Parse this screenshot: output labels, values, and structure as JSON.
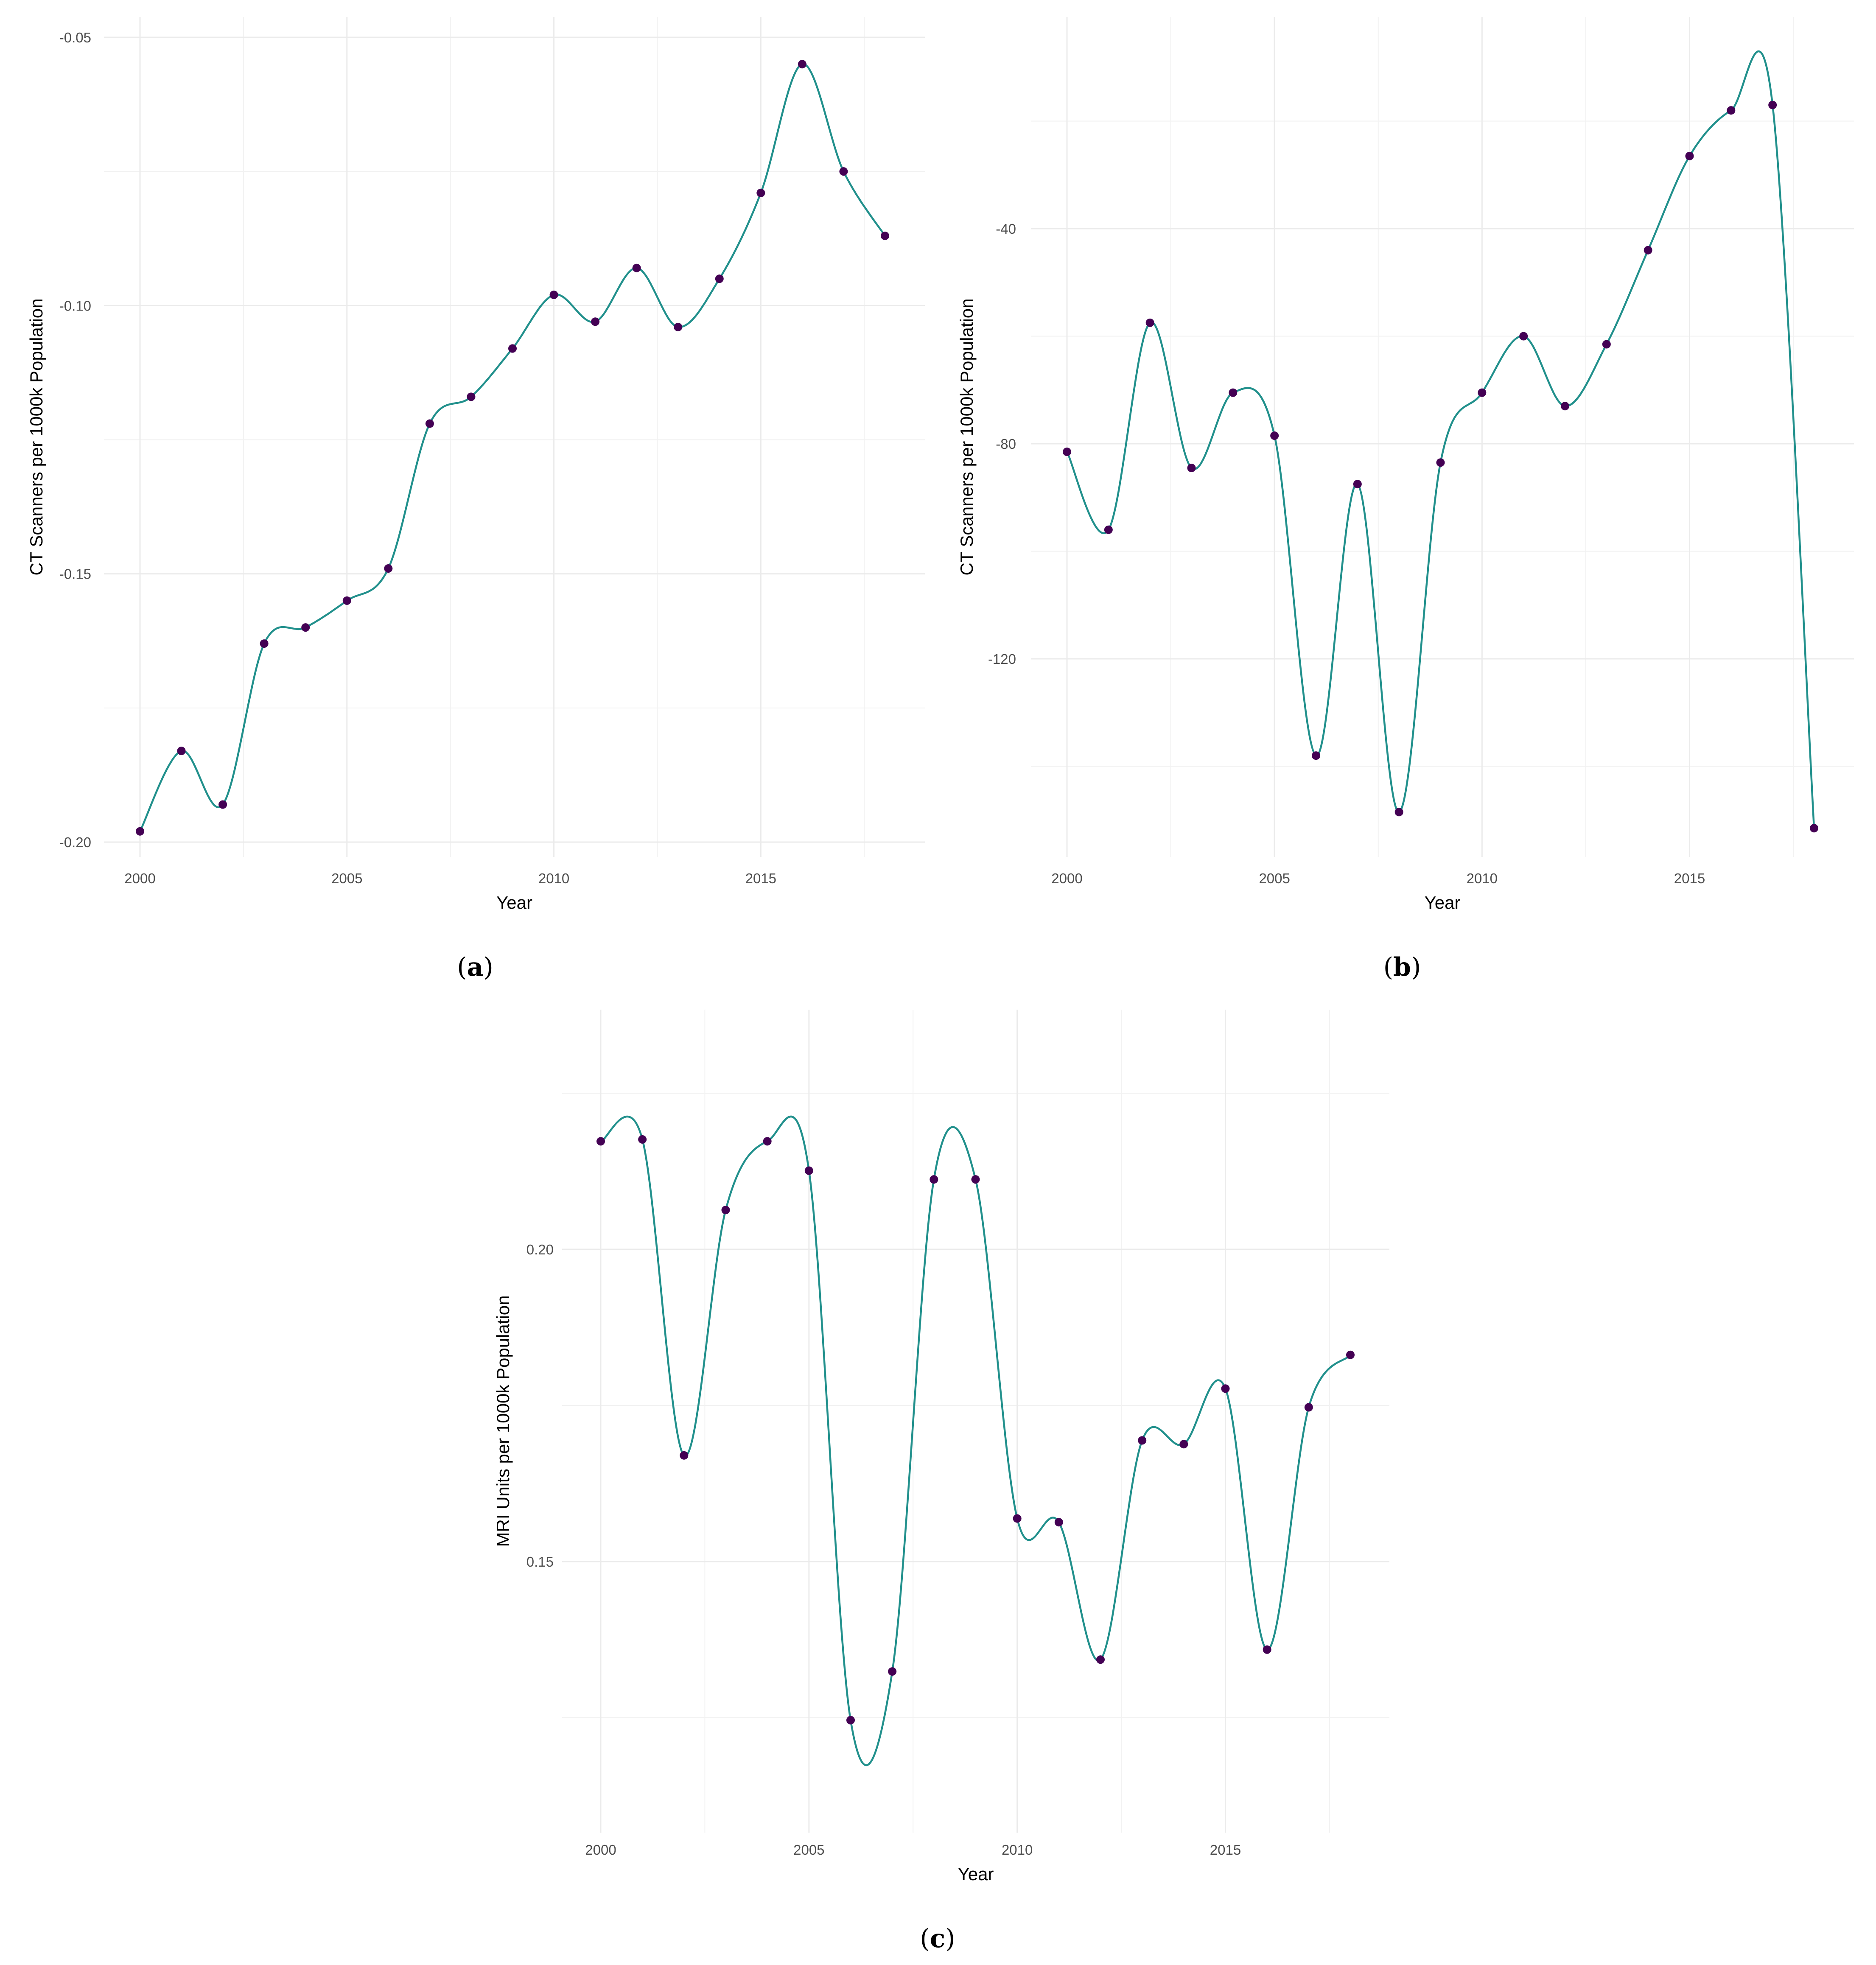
{
  "chart_data": [
    {
      "panel": "(a)",
      "panel_letter": "a",
      "type": "line",
      "xlabel": "Year",
      "ylabel": "CT Scanners per 1000k Population",
      "xlim": [
        2000,
        2018
      ],
      "ylim": [
        -0.2,
        -0.05
      ],
      "x_ticks": [
        2000,
        2005,
        2010,
        2015
      ],
      "y_ticks": [
        -0.05,
        -0.1,
        -0.15,
        -0.2
      ],
      "y_tick_labels": [
        "-0.05",
        "-0.10",
        "-0.15",
        "-0.20"
      ],
      "x": [
        2000,
        2001,
        2002,
        2003,
        2004,
        2005,
        2006,
        2007,
        2008,
        2009,
        2010,
        2011,
        2012,
        2013,
        2014,
        2015,
        2016,
        2017,
        2018
      ],
      "values": [
        -0.198,
        -0.183,
        -0.193,
        -0.163,
        -0.16,
        -0.155,
        -0.149,
        -0.122,
        -0.117,
        -0.108,
        -0.098,
        -0.103,
        -0.093,
        -0.104,
        -0.095,
        -0.079,
        -0.055,
        -0.075,
        -0.087
      ],
      "grid": true
    },
    {
      "panel": "(b)",
      "panel_letter": "b",
      "type": "line",
      "xlabel": "Year",
      "ylabel": "CT Scanners per 1000k Population",
      "xlim": [
        2000,
        2018
      ],
      "ylim": [
        -150,
        -10
      ],
      "x_ticks": [
        2000,
        2005,
        2010,
        2015
      ],
      "y_ticks": [
        -40,
        -80,
        -120
      ],
      "y_tick_labels": [
        "-40",
        "-80",
        "-120"
      ],
      "x": [
        2000,
        2001,
        2002,
        2003,
        2004,
        2005,
        2006,
        2007,
        2008,
        2009,
        2010,
        2011,
        2012,
        2013,
        2014,
        2015,
        2016,
        2017,
        2018
      ],
      "values": [
        -81.5,
        -96,
        -57.5,
        -84.5,
        -70.5,
        -78.5,
        -138,
        -87.5,
        -148.5,
        -83.5,
        -70.5,
        -60,
        -73,
        -61.5,
        -44,
        -26.5,
        -18,
        -17,
        -151.5
      ],
      "grid": true
    },
    {
      "panel": "(c)",
      "panel_letter": "c",
      "type": "line",
      "xlabel": "Year",
      "ylabel": "MRI Units per 1000k Population",
      "xlim": [
        2000,
        2018
      ],
      "ylim": [
        0.113,
        0.235
      ],
      "x_ticks": [
        2000,
        2005,
        2010,
        2015
      ],
      "y_ticks": [
        0.2,
        0.15
      ],
      "y_tick_labels": [
        "0.20",
        "0.15"
      ],
      "x": [
        2000,
        2001,
        2002,
        2003,
        2004,
        2005,
        2006,
        2007,
        2008,
        2009,
        2010,
        2011,
        2012,
        2013,
        2014,
        2015,
        2016,
        2017,
        2018
      ],
      "values": [
        0.2173,
        0.2176,
        0.167,
        0.2063,
        0.2173,
        0.2126,
        0.1246,
        0.1324,
        0.2112,
        0.2112,
        0.1569,
        0.1563,
        0.1343,
        0.1694,
        0.1688,
        0.1777,
        0.1359,
        0.1747,
        0.1831
      ],
      "grid": true
    }
  ],
  "colors": {
    "line": "#21908c",
    "point": "#440154",
    "grid_major": "#ebebeb",
    "grid_minor": "#f2f2f2",
    "tick_text": "#4d4d4d"
  }
}
